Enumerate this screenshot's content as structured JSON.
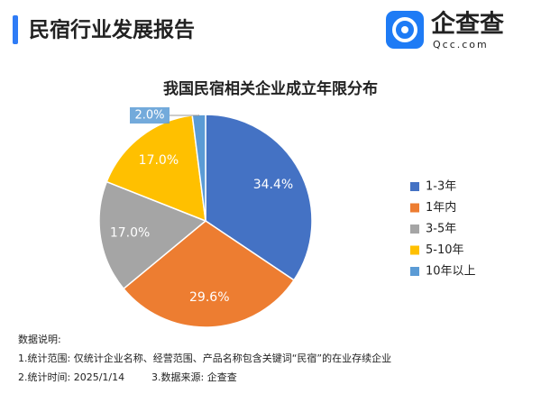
{
  "header": {
    "title": "民宿行业发展报告",
    "logo_text": "企查查",
    "logo_domain": "Qcc.com"
  },
  "chart_data": {
    "type": "pie",
    "title": "我国民宿相关企业成立年限分布",
    "categories": [
      "1-3年",
      "1年内",
      "3-5年",
      "5-10年",
      "10年以上"
    ],
    "values": [
      34.4,
      29.6,
      17.0,
      17.0,
      2.0
    ],
    "value_labels": [
      "34.4%",
      "29.6%",
      "17.0%",
      "17.0%",
      "2.0%"
    ],
    "colors": [
      "#4472c4",
      "#ed7d31",
      "#a5a5a5",
      "#ffc000",
      "#5b9bd5"
    ],
    "legend": "right"
  },
  "notes": [
    "数据说明:",
    "1.统计范围: 仅统计企业名称、经营范围、产品名称包含关键词“民宿”的在业存续企业",
    "2.统计时间: 2025/1/14",
    "3.数据来源: 企查查"
  ]
}
